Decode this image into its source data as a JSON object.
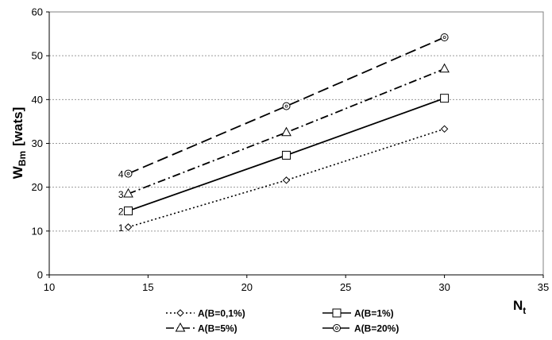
{
  "chart_data": {
    "type": "line",
    "ylabel": "W",
    "ylabel_sub": "Bm",
    "ylabel_unit": "[wats]",
    "xlabel": "N",
    "xlabel_sub": "t",
    "xlim": [
      10,
      35
    ],
    "ylim": [
      0,
      60
    ],
    "x_ticks": [
      10,
      15,
      20,
      25,
      30,
      35
    ],
    "y_ticks": [
      0,
      10,
      20,
      30,
      40,
      50,
      60
    ],
    "grid": "horizontal dotted",
    "legend_position": "bottom",
    "x": [
      14,
      22,
      30
    ],
    "series": [
      {
        "name": "A(B=0,1%)",
        "label": "1",
        "values": [
          10.9,
          21.6,
          33.3
        ],
        "marker": "diamond",
        "dash": "dotted"
      },
      {
        "name": "A(B=1%)",
        "label": "2",
        "values": [
          14.6,
          27.3,
          40.3
        ],
        "marker": "square",
        "dash": "solid"
      },
      {
        "name": "A(B=5%)",
        "label": "3",
        "values": [
          18.5,
          32.5,
          47.0
        ],
        "marker": "triangle",
        "dash": "dash-dot"
      },
      {
        "name": "A(B=20%)",
        "label": "4",
        "values": [
          23.1,
          38.5,
          54.2
        ],
        "marker": "circle",
        "dash": "long-dash"
      }
    ]
  }
}
